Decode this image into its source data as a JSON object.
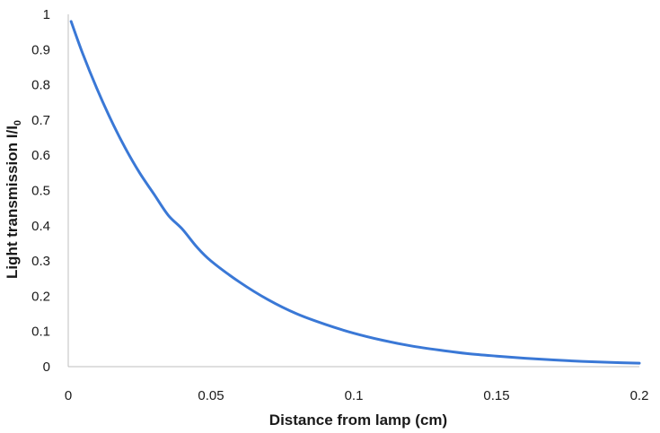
{
  "chart_data": {
    "type": "line",
    "title": "",
    "xlabel": "Distance from lamp (cm)",
    "ylabel": {
      "text": "Light transmission  I/I",
      "subscript": "0"
    },
    "xlim": [
      0,
      0.2
    ],
    "ylim": [
      0,
      1
    ],
    "x_ticks": [
      "0",
      "0.05",
      "0.1",
      "0.15",
      "0.2"
    ],
    "y_ticks": [
      "0",
      "0.1",
      "0.2",
      "0.3",
      "0.4",
      "0.5",
      "0.6",
      "0.7",
      "0.8",
      "0.9",
      "1"
    ],
    "grid": false,
    "legend": "none",
    "line_color": "#3a78d6",
    "series": [
      {
        "x": [
          0.001,
          0.005,
          0.01,
          0.015,
          0.02,
          0.025,
          0.03,
          0.035,
          0.04,
          0.045,
          0.05,
          0.06,
          0.07,
          0.08,
          0.09,
          0.1,
          0.11,
          0.12,
          0.13,
          0.14,
          0.15,
          0.16,
          0.17,
          0.18,
          0.19,
          0.2
        ],
        "values": [
          0.98,
          0.89,
          0.79,
          0.7,
          0.62,
          0.55,
          0.49,
          0.43,
          0.39,
          0.34,
          0.3,
          0.24,
          0.19,
          0.15,
          0.12,
          0.095,
          0.075,
          0.059,
          0.047,
          0.037,
          0.03,
          0.024,
          0.019,
          0.015,
          0.012,
          0.01
        ]
      }
    ]
  }
}
